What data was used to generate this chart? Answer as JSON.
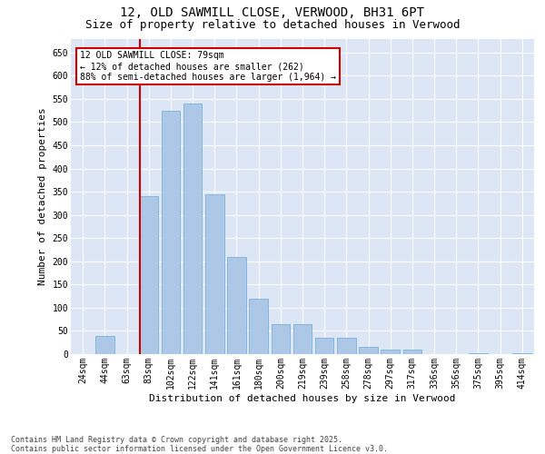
{
  "title": "12, OLD SAWMILL CLOSE, VERWOOD, BH31 6PT",
  "subtitle": "Size of property relative to detached houses in Verwood",
  "xlabel": "Distribution of detached houses by size in Verwood",
  "ylabel": "Number of detached properties",
  "categories": [
    "24sqm",
    "44sqm",
    "63sqm",
    "83sqm",
    "102sqm",
    "122sqm",
    "141sqm",
    "161sqm",
    "180sqm",
    "200sqm",
    "219sqm",
    "239sqm",
    "258sqm",
    "278sqm",
    "297sqm",
    "317sqm",
    "336sqm",
    "356sqm",
    "375sqm",
    "395sqm",
    "414sqm"
  ],
  "values": [
    0,
    40,
    0,
    340,
    525,
    540,
    345,
    210,
    120,
    65,
    65,
    35,
    35,
    15,
    10,
    10,
    0,
    0,
    2,
    0,
    2
  ],
  "bar_color": "#adc8e6",
  "bar_edge_color": "#6aaad4",
  "vline_index": 3,
  "vline_color": "#cc0000",
  "annotation_title": "12 OLD SAWMILL CLOSE: 79sqm",
  "annotation_line1": "← 12% of detached houses are smaller (262)",
  "annotation_line2": "88% of semi-detached houses are larger (1,964) →",
  "annotation_box_edgecolor": "#cc0000",
  "ylim": [
    0,
    680
  ],
  "yticks": [
    0,
    50,
    100,
    150,
    200,
    250,
    300,
    350,
    400,
    450,
    500,
    550,
    600,
    650
  ],
  "background_color": "#dce6f5",
  "footnote1": "Contains HM Land Registry data © Crown copyright and database right 2025.",
  "footnote2": "Contains public sector information licensed under the Open Government Licence v3.0.",
  "title_fontsize": 10,
  "subtitle_fontsize": 9,
  "axis_label_fontsize": 8,
  "tick_fontsize": 7,
  "ann_fontsize": 7,
  "footnote_fontsize": 6
}
